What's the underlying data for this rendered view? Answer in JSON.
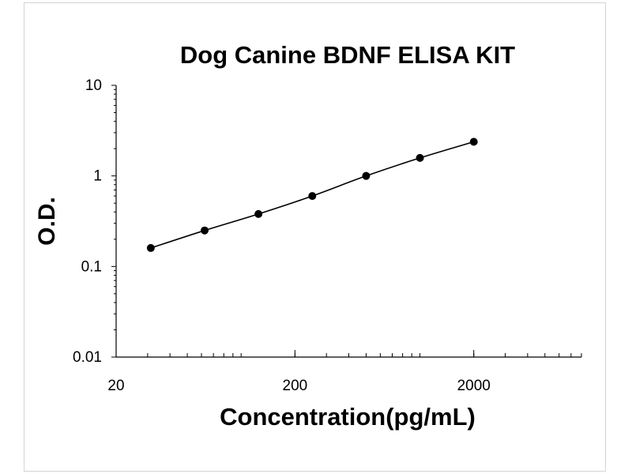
{
  "chart_data": {
    "type": "line",
    "title": "Dog Canine BDNF ELISA KIT",
    "xlabel": "Concentration(pg/mL)",
    "ylabel": "O.D.",
    "x_scale": "log",
    "y_scale": "log",
    "xlim": [
      20,
      8000
    ],
    "ylim": [
      0.01,
      10
    ],
    "x_ticks": [
      {
        "value": 20,
        "label": "20"
      },
      {
        "value": 200,
        "label": "200"
      },
      {
        "value": 2000,
        "label": "2000"
      }
    ],
    "y_ticks": [
      {
        "value": 10,
        "label": "10"
      },
      {
        "value": 1,
        "label": "1"
      },
      {
        "value": 0.1,
        "label": "0.1"
      },
      {
        "value": 0.01,
        "label": "0.01"
      }
    ],
    "grid": false,
    "legend": "none",
    "series": [
      {
        "x": [
          31.25,
          62.5,
          125,
          250,
          500,
          1000,
          2000
        ],
        "y": [
          0.16,
          0.25,
          0.38,
          0.6,
          1.0,
          1.58,
          2.38
        ]
      }
    ],
    "colors": {
      "line": "#000000",
      "marker": "#000000",
      "axis": "#000000"
    }
  }
}
